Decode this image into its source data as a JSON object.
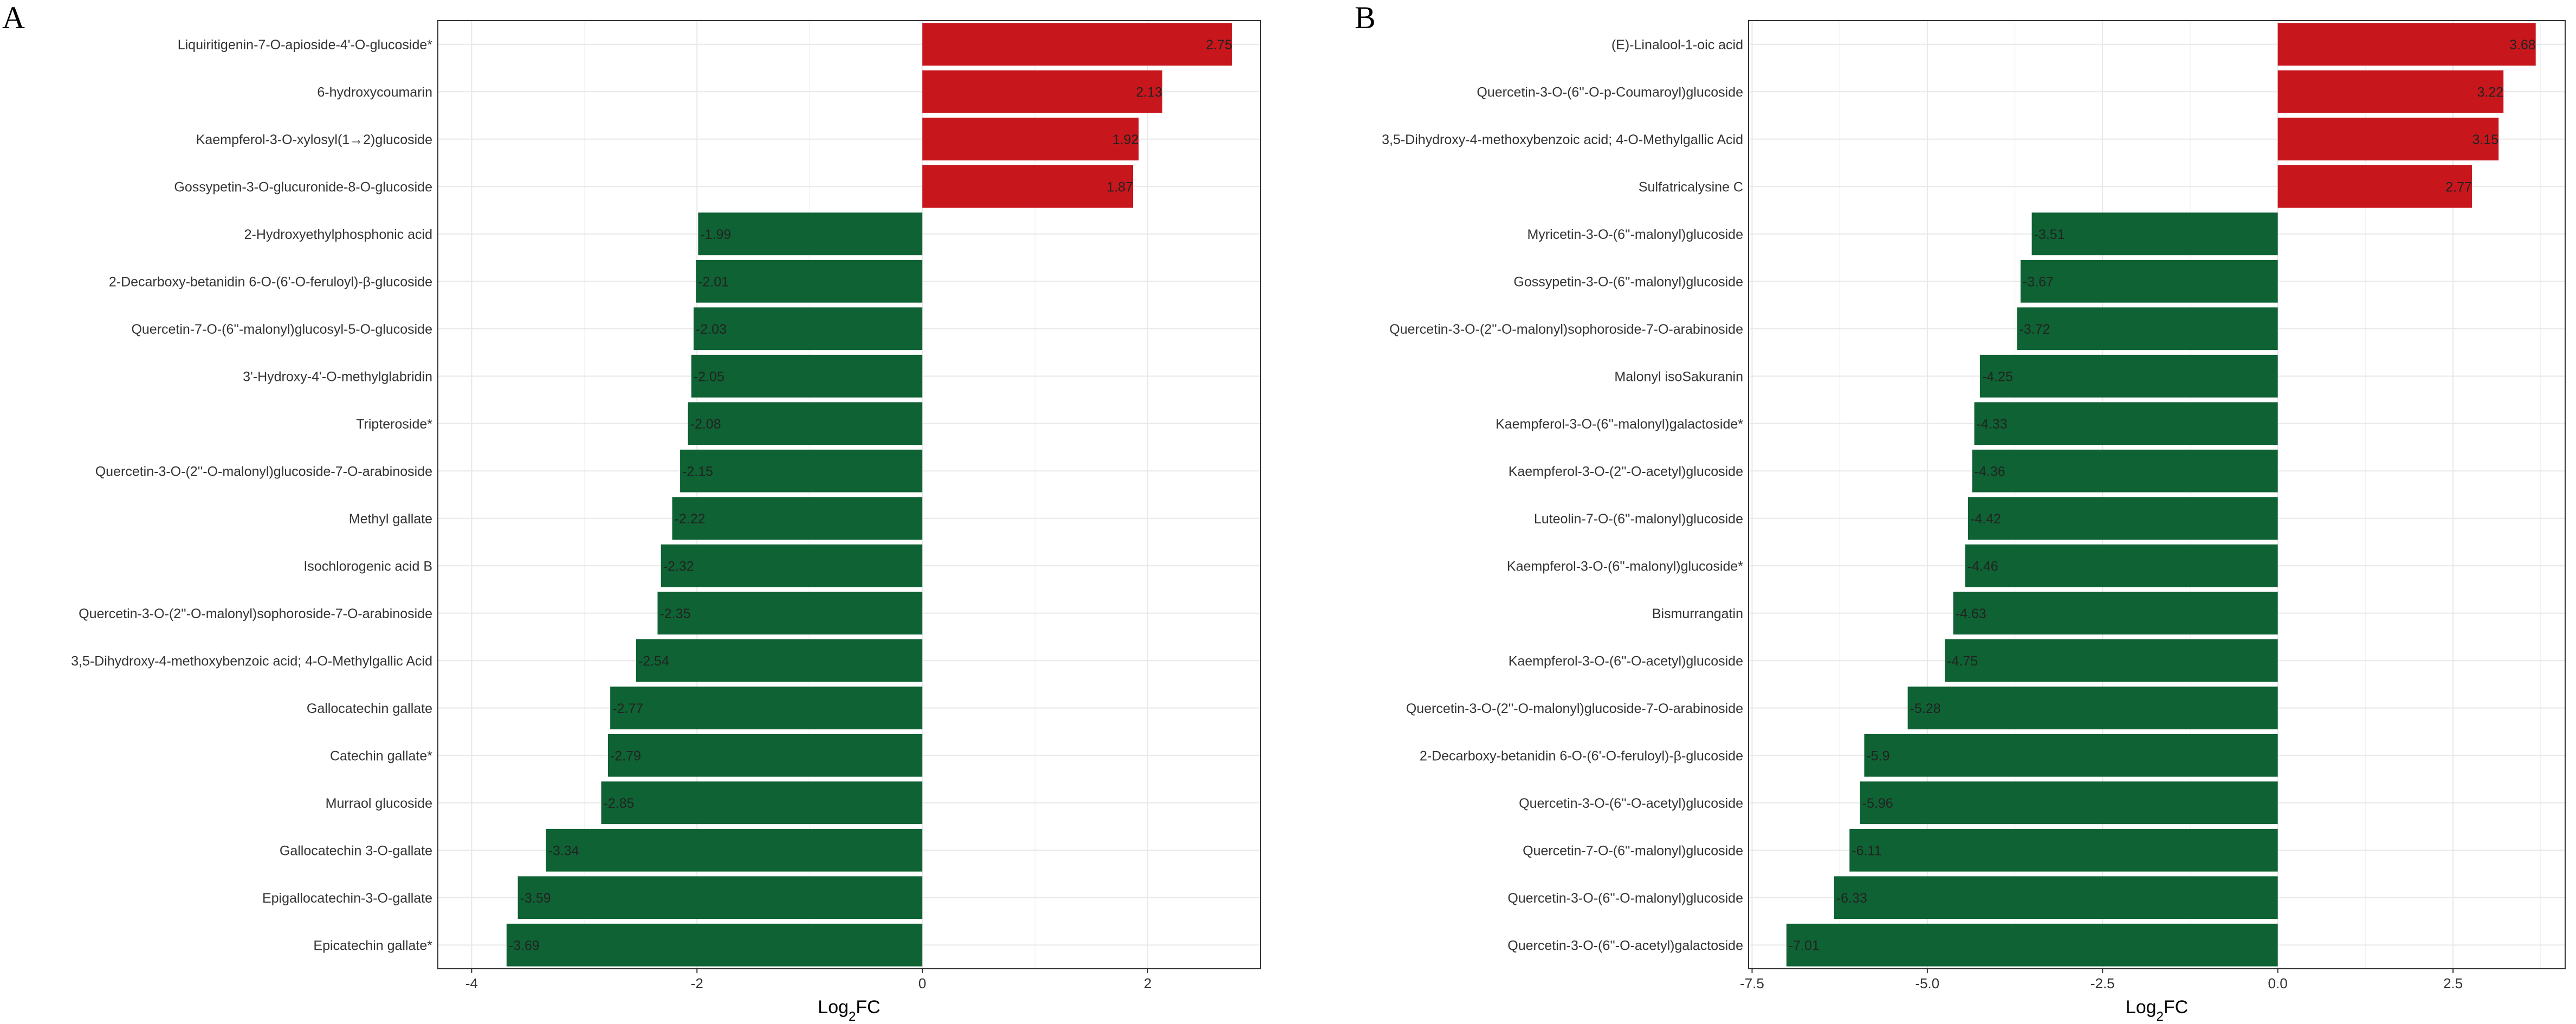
{
  "colors": {
    "up": "#c8161d",
    "down": "#0f6233",
    "grid": "#e8e8e8"
  },
  "chart_data": [
    {
      "panel": "A",
      "type": "bar",
      "orientation": "horizontal",
      "xlabel": "Log",
      "xlabel_sub": "2",
      "xlabel_suffix": "FC",
      "xlim": [
        -4.3,
        3.0
      ],
      "xticks": [
        -4,
        -2,
        0,
        2
      ],
      "tick_labels": [
        "-4",
        "-2",
        "0",
        "2"
      ],
      "categories": [
        "Liquiritigenin-7-O-apioside-4'-O-glucoside*",
        "6-hydroxycoumarin",
        "Kaempferol-3-O-xylosyl(1→2)glucoside",
        "Gossypetin-3-O-glucuronide-8-O-glucoside",
        "2-Hydroxyethylphosphonic acid",
        "2-Decarboxy-betanidin 6-O-(6'-O-feruloyl)-β-glucoside",
        "Quercetin-7-O-(6''-malonyl)glucosyl-5-O-glucoside",
        "3'-Hydroxy-4'-O-methylglabridin",
        "Tripteroside*",
        "Quercetin-3-O-(2''-O-malonyl)glucoside-7-O-arabinoside",
        "Methyl gallate",
        "Isochlorogenic acid B",
        "Quercetin-3-O-(2''-O-malonyl)sophoroside-7-O-arabinoside",
        "3,5-Dihydroxy-4-methoxybenzoic acid; 4-O-Methylgallic Acid",
        "Gallocatechin gallate",
        "Catechin gallate*",
        "Murraol glucoside",
        "Gallocatechin 3-O-gallate",
        "Epigallocatechin-3-O-gallate",
        "Epicatechin gallate*"
      ],
      "values": [
        2.75,
        2.13,
        1.92,
        1.87,
        -1.99,
        -2.01,
        -2.03,
        -2.05,
        -2.08,
        -2.15,
        -2.22,
        -2.32,
        -2.35,
        -2.54,
        -2.77,
        -2.79,
        -2.85,
        -3.34,
        -3.59,
        -3.69
      ],
      "value_labels": [
        "2.75",
        "2.13",
        "1.92",
        "1.87",
        "-1.99",
        "-2.01",
        "-2.03",
        "-2.05",
        "-2.08",
        "-2.15",
        "-2.22",
        "-2.32",
        "-2.35",
        "-2.54",
        "-2.77",
        "-2.79",
        "-2.85",
        "-3.34",
        "-3.59",
        "-3.69"
      ]
    },
    {
      "panel": "B",
      "type": "bar",
      "orientation": "horizontal",
      "xlabel": "Log",
      "xlabel_sub": "2",
      "xlabel_suffix": "FC",
      "xlim": [
        -7.55,
        4.1
      ],
      "xticks": [
        -7.5,
        -5.0,
        -2.5,
        0.0,
        2.5
      ],
      "tick_labels": [
        "-7.5",
        "-5.0",
        "-2.5",
        "0.0",
        "2.5"
      ],
      "categories": [
        "(E)-Linalool-1-oic acid",
        "Quercetin-3-O-(6''-O-p-Coumaroyl)glucoside",
        "3,5-Dihydroxy-4-methoxybenzoic acid; 4-O-Methylgallic Acid",
        "Sulfatricalysine C",
        "Myricetin-3-O-(6''-malonyl)glucoside",
        "Gossypetin-3-O-(6''-malonyl)glucoside",
        "Quercetin-3-O-(2''-O-malonyl)sophoroside-7-O-arabinoside",
        "Malonyl isoSakuranin",
        "Kaempferol-3-O-(6''-malonyl)galactoside*",
        "Kaempferol-3-O-(2''-O-acetyl)glucoside",
        "Luteolin-7-O-(6''-malonyl)glucoside",
        "Kaempferol-3-O-(6''-malonyl)glucoside*",
        "Bismurrangatin",
        "Kaempferol-3-O-(6''-O-acetyl)glucoside",
        "Quercetin-3-O-(2''-O-malonyl)glucoside-7-O-arabinoside",
        "2-Decarboxy-betanidin 6-O-(6'-O-feruloyl)-β-glucoside",
        "Quercetin-3-O-(6''-O-acetyl)glucoside",
        "Quercetin-7-O-(6''-malonyl)glucoside",
        "Quercetin-3-O-(6''-O-malonyl)glucoside",
        "Quercetin-3-O-(6''-O-acetyl)galactoside"
      ],
      "values": [
        3.68,
        3.22,
        3.15,
        2.77,
        -3.51,
        -3.67,
        -3.72,
        -4.25,
        -4.33,
        -4.36,
        -4.42,
        -4.46,
        -4.63,
        -4.75,
        -5.28,
        -5.9,
        -5.96,
        -6.11,
        -6.33,
        -7.01
      ],
      "value_labels": [
        "3.68",
        "3.22",
        "3.15",
        "2.77",
        "-3.51",
        "-3.67",
        "-3.72",
        "-4.25",
        "-4.33",
        "-4.36",
        "-4.42",
        "-4.46",
        "-4.63",
        "-4.75",
        "-5.28",
        "-5.9",
        "-5.96",
        "-6.11",
        "-6.33",
        "-7.01"
      ]
    }
  ]
}
